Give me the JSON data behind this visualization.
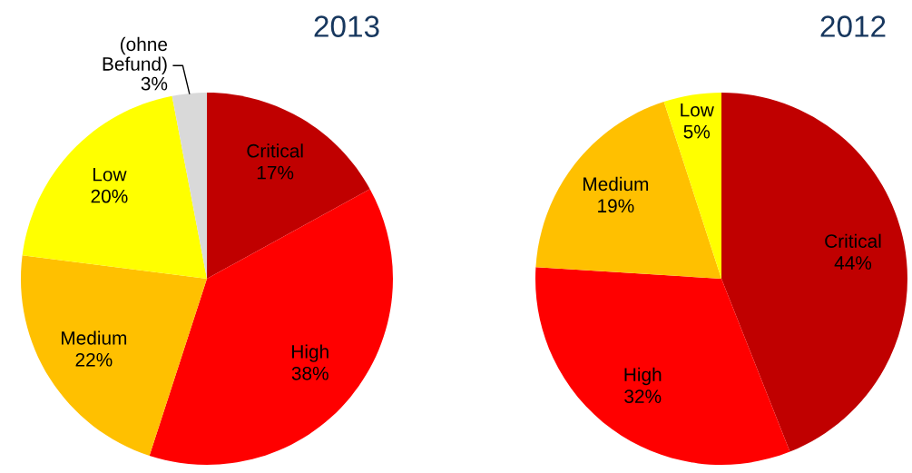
{
  "chart_data": [
    {
      "type": "pie",
      "title": "2013",
      "categories": [
        "Critical",
        "High",
        "Medium",
        "Low",
        "(ohne Befund)"
      ],
      "values": [
        17,
        38,
        22,
        20,
        3
      ],
      "colors": [
        "#c00000",
        "#ff0000",
        "#ffc000",
        "#ffff00",
        "#d9d9d9"
      ],
      "value_labels": [
        "17%",
        "38%",
        "22%",
        "20%",
        "3%"
      ]
    },
    {
      "type": "pie",
      "title": "2012",
      "categories": [
        "Critical",
        "High",
        "Medium",
        "Low"
      ],
      "values": [
        44,
        32,
        19,
        5
      ],
      "colors": [
        "#c00000",
        "#ff0000",
        "#ffc000",
        "#ffff00"
      ],
      "value_labels": [
        "44%",
        "32%",
        "19%",
        "5%"
      ]
    }
  ]
}
